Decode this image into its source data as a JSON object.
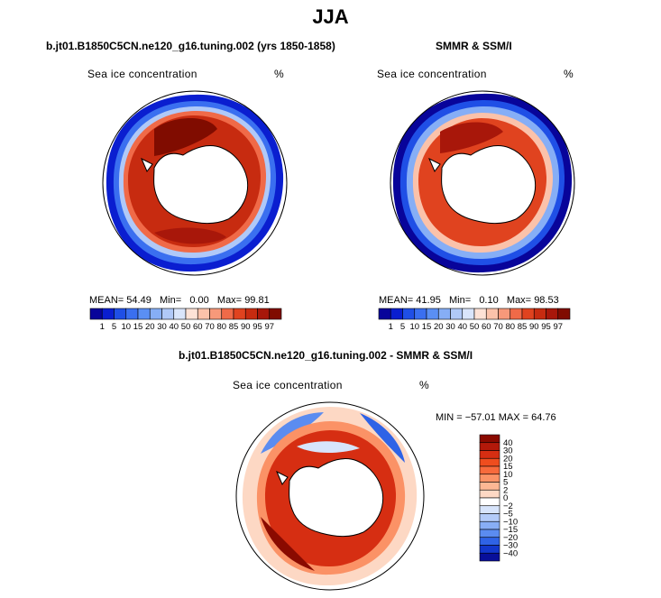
{
  "title": "JJA",
  "panels": [
    {
      "id": "model",
      "subtitle": "b.jt01.B1850C5CN.ne120_g16.tuning.002 (yrs 1850-1858)",
      "variable": "Sea ice concentration",
      "units": "%",
      "stats": {
        "mean_label": "MEAN=",
        "mean": "54.49",
        "min_label": "Min=",
        "min": "0.00",
        "max_label": "Max=",
        "max": "99.81"
      }
    },
    {
      "id": "obs",
      "subtitle": "SMMR & SSM/I",
      "variable": "Sea ice concentration",
      "units": "%",
      "stats": {
        "mean_label": "MEAN=",
        "mean": "41.95",
        "min_label": "Min=",
        "min": "0.10",
        "max_label": "Max=",
        "max": "98.53"
      }
    },
    {
      "id": "diff",
      "subtitle": "b.jt01.B1850C5CN.ne120_g16.tuning.002 - SMMR & SSM/I",
      "variable": "Sea ice concentration",
      "units": "%",
      "stats": {
        "text": "MIN = −57.01 MAX = 64.76"
      }
    }
  ],
  "chart_data": [
    {
      "type": "heatmap",
      "panel": "model",
      "title": "Sea ice concentration",
      "units": "%",
      "projection": "south polar stereographic",
      "mean": 54.49,
      "min": 0.0,
      "max": 99.81,
      "colorbar": {
        "orientation": "horizontal",
        "levels": [
          1,
          5,
          10,
          15,
          20,
          30,
          40,
          50,
          60,
          70,
          80,
          85,
          90,
          95,
          97
        ],
        "labels": [
          "1",
          "5",
          "10",
          "15",
          "20",
          "30",
          "40",
          "50",
          "60",
          "70",
          "80",
          "85",
          "90",
          "95",
          "97"
        ],
        "colors": [
          "#08049a",
          "#0a1ed0",
          "#1f4fe6",
          "#3a6ff0",
          "#5a8ff4",
          "#86aef6",
          "#b0c9f8",
          "#d9e5fb",
          "#fde2d6",
          "#fbc2aa",
          "#f7997a",
          "#f06a48",
          "#e0431f",
          "#c72b10",
          "#a8170a",
          "#800c00"
        ]
      }
    },
    {
      "type": "heatmap",
      "panel": "obs",
      "title": "Sea ice concentration",
      "units": "%",
      "projection": "south polar stereographic",
      "mean": 41.95,
      "min": 0.1,
      "max": 98.53,
      "colorbar": {
        "orientation": "horizontal",
        "levels": [
          1,
          5,
          10,
          15,
          20,
          30,
          40,
          50,
          60,
          70,
          80,
          85,
          90,
          95,
          97
        ],
        "labels": [
          "1",
          "5",
          "10",
          "15",
          "20",
          "30",
          "40",
          "50",
          "60",
          "70",
          "80",
          "85",
          "90",
          "95",
          "97"
        ],
        "colors": [
          "#08049a",
          "#0a1ed0",
          "#1f4fe6",
          "#3a6ff0",
          "#5a8ff4",
          "#86aef6",
          "#b0c9f8",
          "#d9e5fb",
          "#fde2d6",
          "#fbc2aa",
          "#f7997a",
          "#f06a48",
          "#e0431f",
          "#c72b10",
          "#a8170a",
          "#800c00"
        ]
      }
    },
    {
      "type": "heatmap",
      "panel": "diff",
      "title": "Sea ice concentration",
      "units": "%",
      "projection": "south polar stereographic",
      "min": -57.01,
      "max": 64.76,
      "colorbar": {
        "orientation": "vertical",
        "levels": [
          40,
          30,
          20,
          15,
          10,
          5,
          2,
          0,
          -2,
          -5,
          -10,
          -15,
          -20,
          -30,
          -40
        ],
        "labels": [
          "40",
          "30",
          "20",
          "15",
          "10",
          "5",
          "2",
          "0",
          "−2",
          "−5",
          "−10",
          "−15",
          "−20",
          "−30",
          "−40"
        ],
        "colors_top_to_bottom": [
          "#8a0a00",
          "#b3190a",
          "#d62e12",
          "#ef4d1e",
          "#f86a3c",
          "#fb9266",
          "#fcb794",
          "#fdd8c4",
          "#ffffff",
          "#d7e4fb",
          "#b3cbf8",
          "#88aef5",
          "#5b8cf0",
          "#2f63e6",
          "#1237cc",
          "#080f9a"
        ]
      }
    }
  ]
}
